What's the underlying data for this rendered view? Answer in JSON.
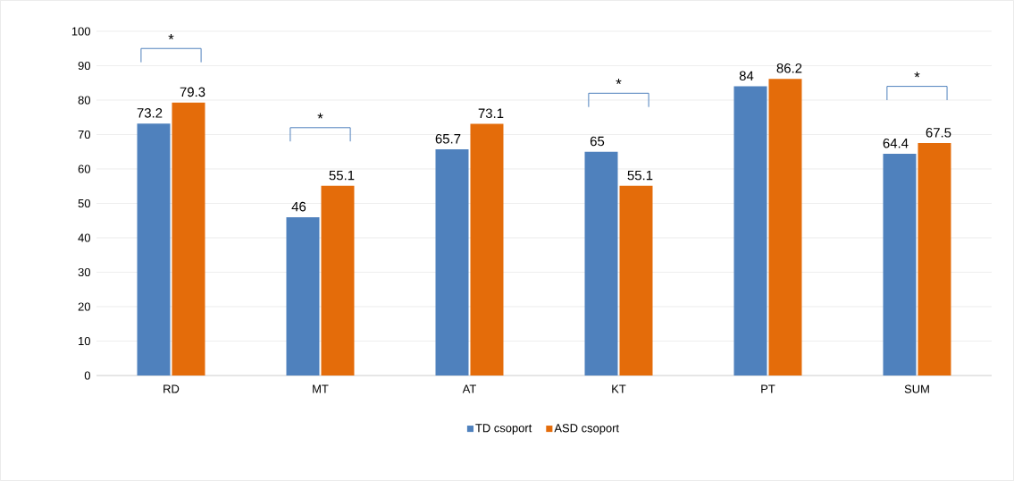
{
  "chart_data": {
    "type": "bar",
    "categories": [
      "RD",
      "MT",
      "AT",
      "KT",
      "PT",
      "SUM"
    ],
    "series": [
      {
        "name": "TD csoport",
        "color": "#4f81bd",
        "values": [
          73.2,
          46,
          65.7,
          65,
          84,
          64.4
        ]
      },
      {
        "name": "ASD csoport",
        "color": "#e46c0a",
        "values": [
          79.3,
          55.1,
          73.1,
          55.1,
          86.2,
          67.5
        ]
      }
    ],
    "ylim": [
      0,
      100
    ],
    "yticks": [
      0,
      10,
      20,
      30,
      40,
      50,
      60,
      70,
      80,
      90,
      100
    ],
    "grid": "y",
    "legend": "bottom",
    "data_labels": true,
    "annotations": [
      "*",
      "*",
      "*",
      "*"
    ]
  }
}
